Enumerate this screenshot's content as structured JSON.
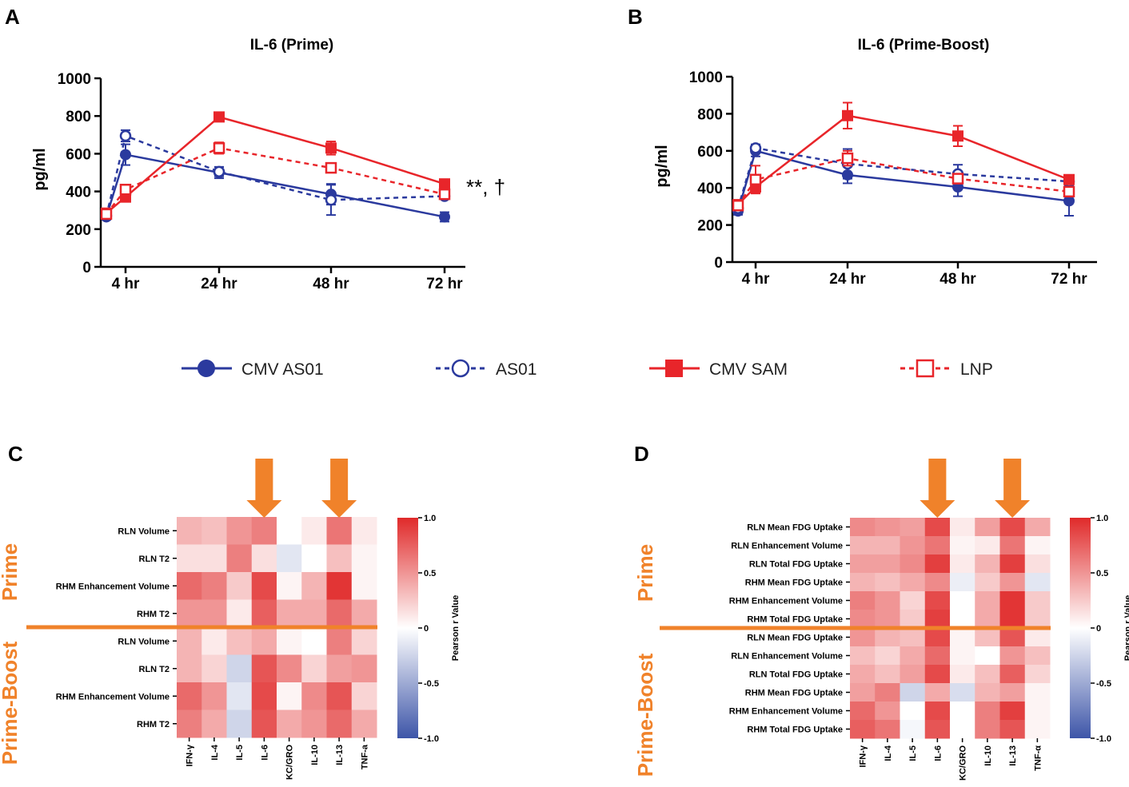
{
  "panels": {
    "A": {
      "label": "A"
    },
    "B": {
      "label": "B"
    },
    "C": {
      "label": "C"
    },
    "D": {
      "label": "D"
    }
  },
  "colors": {
    "blue": "#2b3a9e",
    "red": "#e8252a",
    "orange": "#f0822a",
    "heat_neg": "#3d55a8",
    "heat_mid": "#ffffff",
    "heat_pos": "#e02a2a"
  },
  "legend": [
    {
      "name": "CMV AS01",
      "color": "#2b3a9e",
      "marker": "filled-circle",
      "dashed": false
    },
    {
      "name": "AS01",
      "color": "#2b3a9e",
      "marker": "open-circle",
      "dashed": true
    },
    {
      "name": "CMV SAM",
      "color": "#e8252a",
      "marker": "filled-square",
      "dashed": false
    },
    {
      "name": "LNP",
      "color": "#e8252a",
      "marker": "open-square",
      "dashed": true
    }
  ],
  "heatmap_common": {
    "colorbar_ticks": [
      "1.0",
      "0.5",
      "0",
      "-0.5",
      "-1.0"
    ],
    "colorbar_label": "Pearson r Value",
    "group_prime": "Prime",
    "group_boost": "Prime-Boost"
  },
  "chart_data": [
    {
      "type": "line",
      "panel": "A",
      "title": "IL-6 (Prime)",
      "ylabel": "pg/ml",
      "xlabel": "",
      "ylim": [
        0,
        1000
      ],
      "yticks": [
        0,
        200,
        400,
        600,
        800,
        1000
      ],
      "annotation": "**, †",
      "series": [
        {
          "name": "CMV AS01",
          "x": [
            0,
            4,
            24,
            48,
            72
          ],
          "y": [
            265,
            595,
            500,
            385,
            265
          ],
          "err": [
            15,
            55,
            30,
            55,
            25
          ]
        },
        {
          "name": "AS01",
          "x": [
            0,
            4,
            24,
            48,
            72
          ],
          "y": [
            270,
            695,
            505,
            355,
            375
          ],
          "err": [
            15,
            30,
            25,
            80,
            15
          ]
        },
        {
          "name": "CMV SAM",
          "x": [
            0,
            4,
            24,
            48,
            72
          ],
          "y": [
            285,
            370,
            795,
            630,
            440
          ],
          "err": [
            15,
            20,
            15,
            35,
            20
          ]
        },
        {
          "name": "LNP",
          "x": [
            0,
            4,
            24,
            48,
            72
          ],
          "y": [
            280,
            410,
            630,
            525,
            385
          ],
          "err": [
            15,
            20,
            30,
            15,
            15
          ]
        }
      ],
      "xticks": [
        {
          "x": 4,
          "label": "4 hr"
        },
        {
          "x": 24,
          "label": "24 hr"
        },
        {
          "x": 48,
          "label": "48 hr"
        },
        {
          "x": 72,
          "label": "72 hr"
        }
      ]
    },
    {
      "type": "line",
      "panel": "B",
      "title": "IL-6  (Prime-Boost)",
      "ylabel": "pg/ml",
      "xlabel": "",
      "ylim": [
        0,
        1000
      ],
      "yticks": [
        0,
        200,
        400,
        600,
        800,
        1000
      ],
      "annotation": "",
      "series": [
        {
          "name": "CMV AS01",
          "x": [
            0,
            4,
            24,
            48,
            72
          ],
          "y": [
            275,
            600,
            470,
            405,
            330
          ],
          "err": [
            20,
            30,
            45,
            50,
            80
          ]
        },
        {
          "name": "AS01",
          "x": [
            0,
            4,
            24,
            48,
            72
          ],
          "y": [
            290,
            615,
            530,
            475,
            435
          ],
          "err": [
            20,
            20,
            80,
            50,
            20
          ]
        },
        {
          "name": "CMV SAM",
          "x": [
            0,
            4,
            24,
            48,
            72
          ],
          "y": [
            310,
            405,
            790,
            680,
            445
          ],
          "err": [
            20,
            30,
            70,
            55,
            20
          ]
        },
        {
          "name": "LNP",
          "x": [
            0,
            4,
            24,
            48,
            72
          ],
          "y": [
            305,
            445,
            560,
            450,
            380
          ],
          "err": [
            20,
            75,
            40,
            25,
            20
          ]
        }
      ],
      "xticks": [
        {
          "x": 4,
          "label": "4 hr"
        },
        {
          "x": 24,
          "label": "24 hr"
        },
        {
          "x": 48,
          "label": "48 hr"
        },
        {
          "x": 72,
          "label": "72 hr"
        }
      ]
    },
    {
      "type": "heatmap",
      "panel": "C",
      "columns": [
        "IFN-γ",
        "IL-4",
        "IL-5",
        "IL-6",
        "KC/GRO",
        "IL-10",
        "IL-13",
        "TNF-a"
      ],
      "rows": [
        "RLN Volume",
        "RLN T2",
        "RHM Enhancement Volume",
        "RHM T2",
        "RLN Volume",
        "RLN T2",
        "RHM Enhancement Volume",
        "RHM T2"
      ],
      "prime_rows": 4,
      "arrow_columns": [
        "IL-6",
        "IL-13"
      ],
      "values": [
        [
          0.35,
          0.3,
          0.5,
          0.6,
          0.0,
          0.1,
          0.65,
          0.1
        ],
        [
          0.15,
          0.15,
          0.6,
          0.15,
          -0.15,
          0.0,
          0.3,
          0.05
        ],
        [
          0.7,
          0.6,
          0.25,
          0.85,
          0.05,
          0.35,
          0.95,
          0.05
        ],
        [
          0.5,
          0.5,
          0.1,
          0.75,
          0.4,
          0.4,
          0.7,
          0.4
        ],
        [
          0.35,
          0.1,
          0.3,
          0.4,
          0.05,
          0.0,
          0.6,
          0.2
        ],
        [
          0.35,
          0.2,
          -0.25,
          0.8,
          0.55,
          0.2,
          0.45,
          0.5
        ],
        [
          0.7,
          0.5,
          -0.15,
          0.85,
          0.05,
          0.55,
          0.8,
          0.2
        ],
        [
          0.6,
          0.4,
          -0.25,
          0.8,
          0.4,
          0.5,
          0.7,
          0.4
        ]
      ],
      "colorbar_ticks": [
        "1.0",
        "0.5",
        "0",
        "-0.5",
        "-1.0"
      ],
      "colorbar_label": "Pearson r Value"
    },
    {
      "type": "heatmap",
      "panel": "D",
      "columns": [
        "IFN-γ",
        "IL-4",
        "IL-5",
        "IL-6",
        "KC/GRO",
        "IL-10",
        "IL-13",
        "TNF-α"
      ],
      "rows": [
        "RLN Mean FDG Uptake",
        "RLN Enhancement Volume",
        "RLN Total  FDG Uptake",
        "RHM Mean FDG Uptake",
        "RHM Enhancement Volume",
        "RHM Total FDG Uptake",
        "RLN Mean FDG Uptake",
        "RLN Enhancement Volume",
        "RLN Total FDG Uptake",
        "RHM Mean FDG Uptake",
        "RHM Enhancement Volume",
        "RHM Total FDG Uptake"
      ],
      "prime_rows": 6,
      "arrow_columns": [
        "IL-6",
        "IL-13"
      ],
      "values": [
        [
          0.55,
          0.5,
          0.45,
          0.85,
          0.1,
          0.45,
          0.85,
          0.4
        ],
        [
          0.35,
          0.35,
          0.5,
          0.65,
          0.05,
          0.1,
          0.65,
          0.05
        ],
        [
          0.45,
          0.45,
          0.55,
          0.9,
          0.1,
          0.35,
          0.9,
          0.15
        ],
        [
          0.35,
          0.3,
          0.4,
          0.55,
          -0.1,
          0.25,
          0.5,
          -0.15
        ],
        [
          0.6,
          0.5,
          0.2,
          0.85,
          0.0,
          0.4,
          0.95,
          0.25
        ],
        [
          0.55,
          0.5,
          0.25,
          0.9,
          0.0,
          0.4,
          0.95,
          0.25
        ],
        [
          0.5,
          0.35,
          0.3,
          0.85,
          0.05,
          0.3,
          0.8,
          0.1
        ],
        [
          0.3,
          0.2,
          0.4,
          0.7,
          0.05,
          0.0,
          0.5,
          0.3
        ],
        [
          0.4,
          0.3,
          0.45,
          0.85,
          0.1,
          0.3,
          0.75,
          0.2
        ],
        [
          0.45,
          0.6,
          -0.25,
          0.4,
          -0.2,
          0.35,
          0.45,
          0.05
        ],
        [
          0.7,
          0.5,
          0.0,
          0.85,
          0.0,
          0.6,
          0.9,
          0.05
        ],
        [
          0.75,
          0.65,
          -0.05,
          0.8,
          0.0,
          0.6,
          0.8,
          0.05
        ]
      ],
      "colorbar_ticks": [
        "1.0",
        "0.5",
        "0",
        "-0.5",
        "-1.0"
      ],
      "colorbar_label": "Pearson r Value"
    }
  ]
}
